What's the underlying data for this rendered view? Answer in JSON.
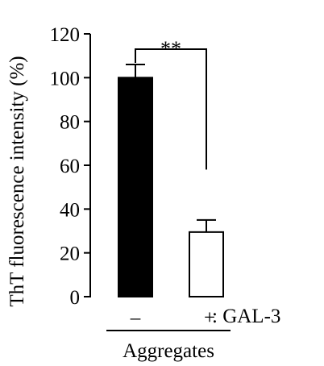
{
  "chart_data": {
    "type": "bar",
    "ylabel": "ThT fluorescence intensity (%)",
    "ylim": [
      0,
      120
    ],
    "yticks": [
      0,
      20,
      40,
      60,
      80,
      100,
      120
    ],
    "categories": [
      "–",
      "+"
    ],
    "values": [
      100,
      29.5
    ],
    "errors": [
      6,
      5.5
    ],
    "bar_colors": [
      "#000000",
      "#ffffff"
    ],
    "condition_label": ": GAL-3",
    "group_label": "Aggregates",
    "significance": "**"
  }
}
